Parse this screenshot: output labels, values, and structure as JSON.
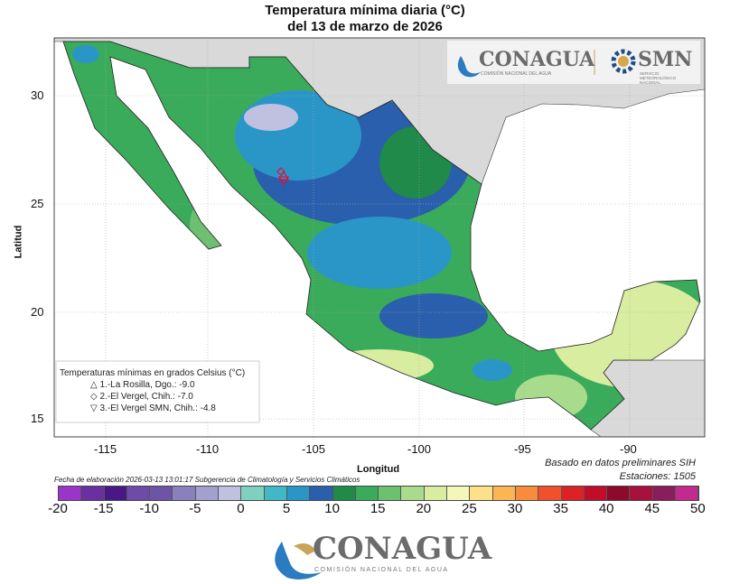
{
  "title": {
    "line1": "Temperatura mínima diaria (°C)",
    "line2": "del 13 de marzo de 2026"
  },
  "axes": {
    "xlabel": "Longitud",
    "ylabel": "Latitud",
    "xticks": [
      "-115",
      "-110",
      "-105",
      "-100",
      "-95",
      "-90"
    ],
    "yticks": [
      "30",
      "25",
      "20",
      "15"
    ]
  },
  "legend": {
    "title": "Temperaturas mínimas en grados Celsius (°C)",
    "items": [
      {
        "symbol": "△",
        "text": "1.-La Rosilla, Dgo.: -9.0"
      },
      {
        "symbol": "◇",
        "text": "2.-El Vergel, Chih.: -7.0"
      },
      {
        "symbol": "▽",
        "text": "3.-El Vergel SMN, Chih.: -4.8"
      }
    ]
  },
  "footer": {
    "left": "Fecha de elaboración 2026-03-13 13:01:17 Subgerencia de Climatología y Servicios Climáticos",
    "right1": "Basado en datos preliminares SIH",
    "right2": "Estaciones:  1505"
  },
  "colorbar": {
    "labels": [
      "-20",
      "-15",
      "-10",
      "-5",
      "0",
      "5",
      "10",
      "15",
      "20",
      "25",
      "30",
      "35",
      "40",
      "45",
      "50"
    ],
    "colors": [
      "#9b35c9",
      "#6a2fa0",
      "#4a1787",
      "#6f4ba8",
      "#6e54a6",
      "#8a80bd",
      "#a39fcf",
      "#c0c0e0",
      "#7fd1bf",
      "#40b8c8",
      "#2a96c8",
      "#2a5fad",
      "#1f8a4a",
      "#3aab5a",
      "#6cc070",
      "#a8dc8c",
      "#d8eda0",
      "#f3f7b8",
      "#fde08a",
      "#fbb552",
      "#f98b3c",
      "#f0502c",
      "#dc2224",
      "#c00d2a",
      "#8e0a2a",
      "#a8103e",
      "#8c1d5c",
      "#c22a8e"
    ]
  },
  "logos": {
    "conagua": "CONAGUA",
    "conagua_sub": "COMISIÓN NACIONAL DEL AGUA",
    "smn": "SMN",
    "smn_sub": "SERVICIO METEOROLÓGICO NACIONAL"
  }
}
